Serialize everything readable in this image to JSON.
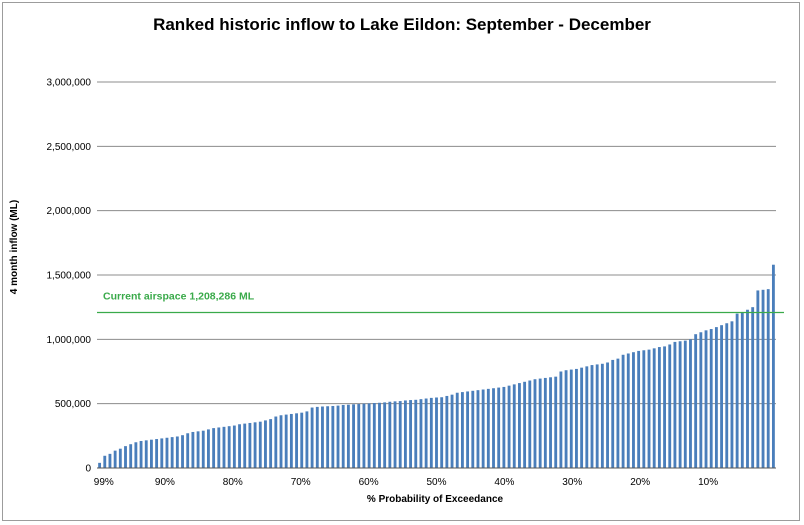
{
  "chart_data": {
    "type": "bar",
    "title": "Ranked historic inflow to Lake Eildon: September - December",
    "xlabel": "% Probability of Exceedance",
    "ylabel": "4 month inflow (ML)",
    "ylim": [
      0,
      3000000
    ],
    "y_ticks": [
      {
        "value": 0,
        "label": "0"
      },
      {
        "value": 500000,
        "label": "500,000"
      },
      {
        "value": 1000000,
        "label": "1,000,000"
      },
      {
        "value": 1500000,
        "label": "1,500,000"
      },
      {
        "value": 2000000,
        "label": "2,000,000"
      },
      {
        "value": 2500000,
        "label": "2,500,000"
      },
      {
        "value": 3000000,
        "label": "3,000,000"
      }
    ],
    "x_ticks": [
      {
        "value": 99,
        "label": "99%"
      },
      {
        "value": 90,
        "label": "90%"
      },
      {
        "value": 80,
        "label": "80%"
      },
      {
        "value": 70,
        "label": "70%"
      },
      {
        "value": 60,
        "label": "60%"
      },
      {
        "value": 50,
        "label": "50%"
      },
      {
        "value": 40,
        "label": "40%"
      },
      {
        "value": 30,
        "label": "30%"
      },
      {
        "value": 20,
        "label": "20%"
      },
      {
        "value": 10,
        "label": "10%"
      }
    ],
    "reference_line": {
      "value": 1208286,
      "label": "Current airspace 1,208,286 ML",
      "color": "#3aaa4a"
    },
    "grid": true,
    "legend": "none",
    "bar_color": "#4a7ebb",
    "gridline_color": "#8c8c8c",
    "values": [
      40000,
      95000,
      110000,
      135000,
      150000,
      170000,
      185000,
      200000,
      210000,
      215000,
      220000,
      225000,
      230000,
      235000,
      240000,
      245000,
      255000,
      270000,
      280000,
      285000,
      290000,
      300000,
      310000,
      315000,
      320000,
      325000,
      330000,
      340000,
      345000,
      350000,
      355000,
      360000,
      370000,
      380000,
      400000,
      410000,
      415000,
      420000,
      425000,
      430000,
      440000,
      470000,
      475000,
      478000,
      480000,
      482000,
      485000,
      490000,
      492000,
      495000,
      497000,
      500000,
      502000,
      505000,
      507000,
      510000,
      515000,
      518000,
      520000,
      525000,
      528000,
      530000,
      535000,
      540000,
      545000,
      548000,
      550000,
      560000,
      570000,
      585000,
      590000,
      595000,
      600000,
      605000,
      610000,
      615000,
      620000,
      625000,
      630000,
      640000,
      650000,
      660000,
      670000,
      680000,
      690000,
      695000,
      700000,
      705000,
      710000,
      750000,
      760000,
      765000,
      770000,
      780000,
      790000,
      800000,
      805000,
      810000,
      820000,
      840000,
      850000,
      880000,
      890000,
      900000,
      910000,
      915000,
      920000,
      930000,
      940000,
      945000,
      960000,
      980000,
      985000,
      990000,
      1000000,
      1040000,
      1055000,
      1070000,
      1080000,
      1095000,
      1110000,
      1125000,
      1140000,
      1200000,
      1210000,
      1230000,
      1250000,
      1380000,
      1385000,
      1390000,
      1580000
    ]
  }
}
